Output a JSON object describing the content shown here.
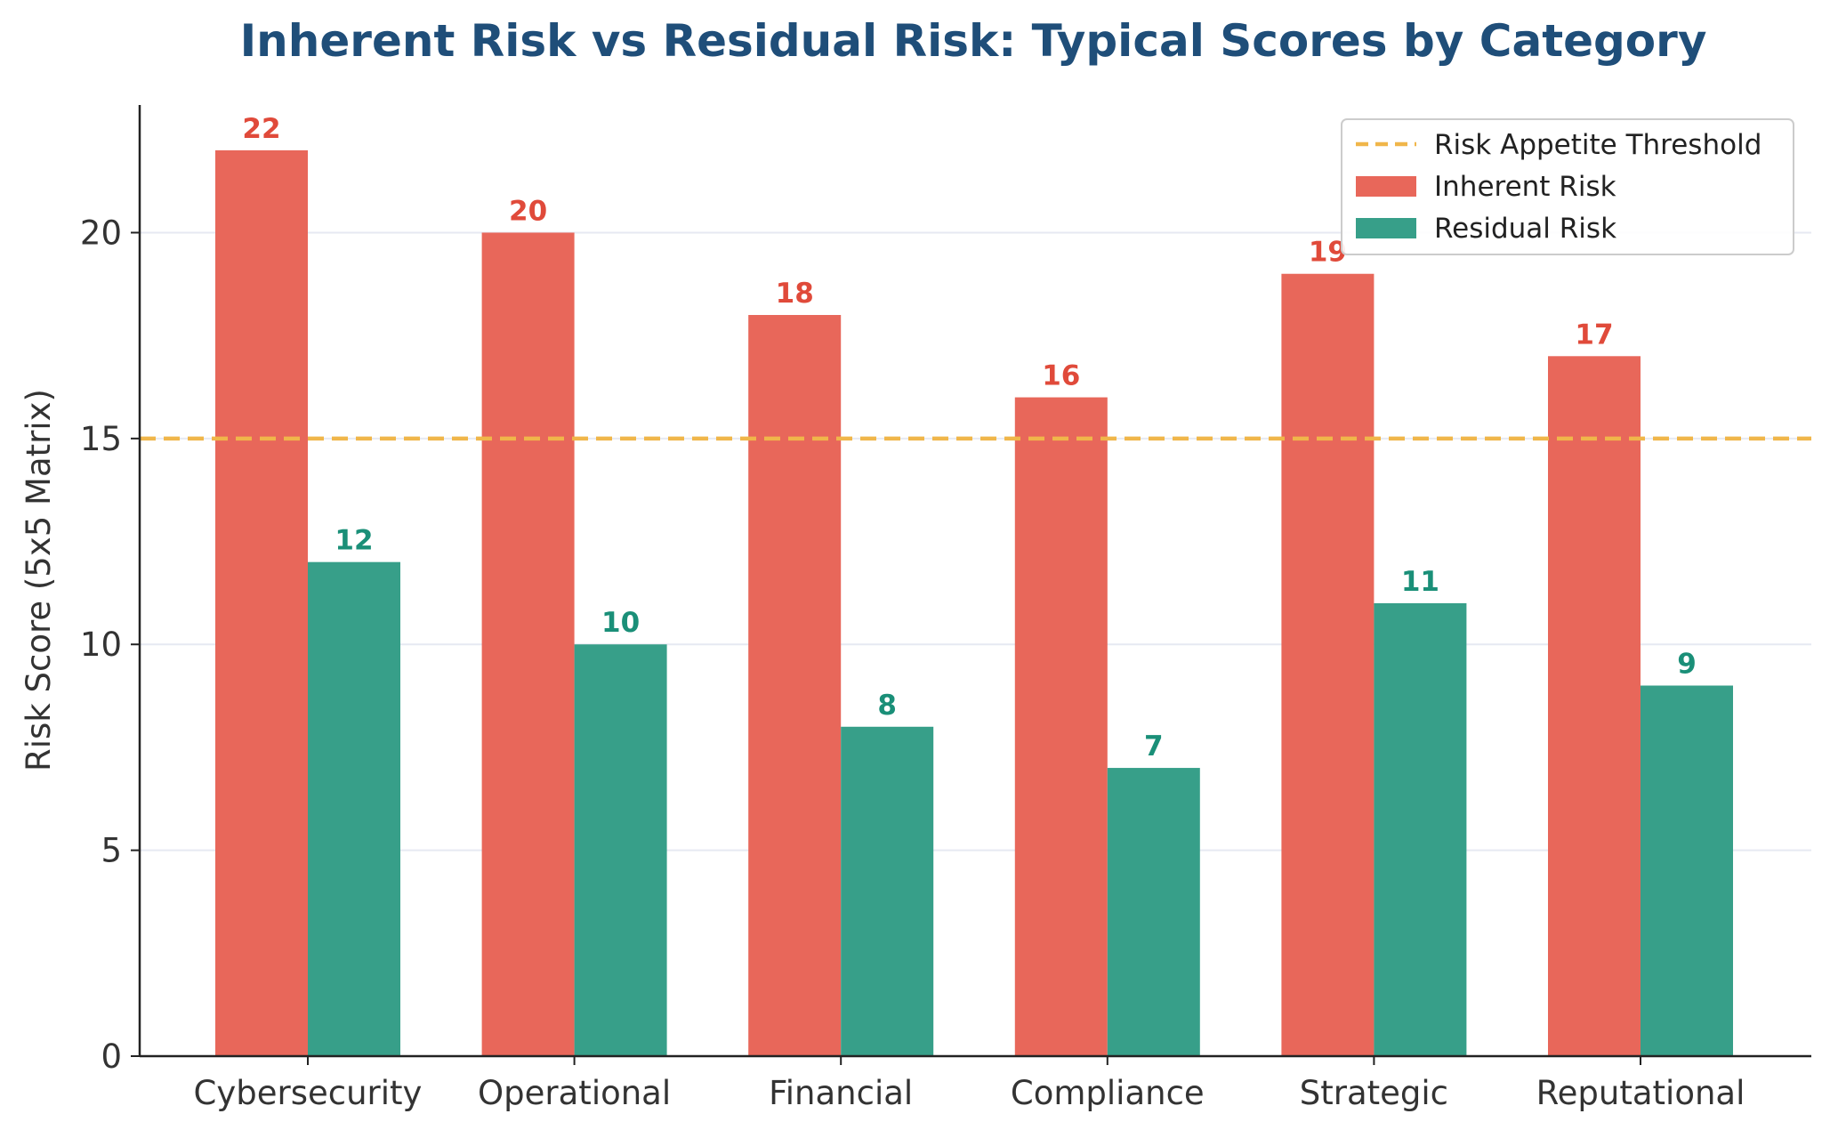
{
  "chart_data": {
    "type": "bar",
    "title": "Inherent Risk vs Residual Risk: Typical Scores by Category",
    "xlabel": "",
    "ylabel": "Risk Score (5x5 Matrix)",
    "categories": [
      "Cybersecurity",
      "Operational",
      "Financial",
      "Compliance",
      "Strategic",
      "Reputational"
    ],
    "series": [
      {
        "name": "Inherent Risk",
        "values": [
          22,
          20,
          18,
          16,
          19,
          17
        ],
        "color": "#e8675a"
      },
      {
        "name": "Residual Risk",
        "values": [
          12,
          10,
          8,
          7,
          11,
          9
        ],
        "color": "#379f89"
      }
    ],
    "label_colors": {
      "Inherent Risk": "#e04a3a",
      "Residual Risk": "#1a8f78"
    },
    "threshold": {
      "name": "Risk Appetite Threshold",
      "value": 15,
      "color": "#f0b64a",
      "style": "dashed"
    },
    "ylim": [
      0,
      23.1
    ],
    "yticks": [
      0,
      5,
      10,
      15,
      20
    ],
    "grid": "horizontal",
    "legend_position": "top-right"
  }
}
